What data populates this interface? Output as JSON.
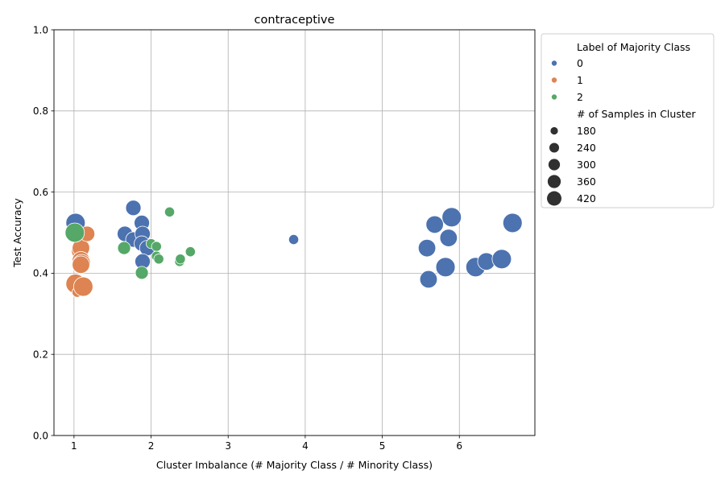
{
  "chart_data": {
    "type": "scatter",
    "title": "contraceptive",
    "xlabel": "Cluster Imbalance (# Majority Class / # Minority Class)",
    "ylabel": "Test Accuracy",
    "xlim": [
      0.74,
      6.98
    ],
    "ylim": [
      0.0,
      1.0
    ],
    "xticks": [
      1,
      2,
      3,
      4,
      5,
      6
    ],
    "yticks": [
      0.0,
      0.2,
      0.4,
      0.6,
      0.8,
      1.0
    ],
    "xtick_labels": [
      "1",
      "2",
      "3",
      "4",
      "5",
      "6"
    ],
    "ytick_labels": [
      "0.0",
      "0.2",
      "0.4",
      "0.6",
      "0.8",
      "1.0"
    ],
    "grid": true,
    "legend": {
      "placement": "outside-upper-right",
      "hue_title": "Label of Majority Class",
      "size_title": "# of Samples in Cluster",
      "hue_entries": [
        {
          "label": "0",
          "color": "#4c72b0"
        },
        {
          "label": "1",
          "color": "#dd8452"
        },
        {
          "label": "2",
          "color": "#55a868"
        }
      ],
      "size_entries": [
        {
          "label": "180",
          "value": 180
        },
        {
          "label": "240",
          "value": 240
        },
        {
          "label": "300",
          "value": 300
        },
        {
          "label": "360",
          "value": 360
        },
        {
          "label": "420",
          "value": 420
        }
      ]
    },
    "size_range": [
      120,
      450
    ],
    "series": [
      {
        "name": "0",
        "color": "#4c72b0",
        "points": [
          {
            "x": 1.02,
            "y": 0.524,
            "size": 420
          },
          {
            "x": 1.66,
            "y": 0.497,
            "size": 300
          },
          {
            "x": 1.77,
            "y": 0.561,
            "size": 300
          },
          {
            "x": 1.77,
            "y": 0.483,
            "size": 300
          },
          {
            "x": 1.88,
            "y": 0.524,
            "size": 300
          },
          {
            "x": 1.89,
            "y": 0.497,
            "size": 300
          },
          {
            "x": 1.88,
            "y": 0.473,
            "size": 300
          },
          {
            "x": 1.95,
            "y": 0.462,
            "size": 300
          },
          {
            "x": 1.89,
            "y": 0.429,
            "size": 300
          },
          {
            "x": 3.85,
            "y": 0.483,
            "size": 180
          },
          {
            "x": 5.58,
            "y": 0.462,
            "size": 360
          },
          {
            "x": 5.68,
            "y": 0.52,
            "size": 360
          },
          {
            "x": 5.6,
            "y": 0.385,
            "size": 360
          },
          {
            "x": 5.82,
            "y": 0.415,
            "size": 420
          },
          {
            "x": 5.86,
            "y": 0.487,
            "size": 360
          },
          {
            "x": 5.9,
            "y": 0.538,
            "size": 420
          },
          {
            "x": 6.21,
            "y": 0.415,
            "size": 420
          },
          {
            "x": 6.35,
            "y": 0.429,
            "size": 360
          },
          {
            "x": 6.55,
            "y": 0.435,
            "size": 420
          },
          {
            "x": 6.69,
            "y": 0.524,
            "size": 420
          }
        ]
      },
      {
        "name": "1",
        "color": "#dd8452",
        "points": [
          {
            "x": 1.02,
            "y": 0.374,
            "size": 420
          },
          {
            "x": 1.04,
            "y": 0.353,
            "size": 180
          },
          {
            "x": 1.08,
            "y": 0.455,
            "size": 360
          },
          {
            "x": 1.09,
            "y": 0.462,
            "size": 360
          },
          {
            "x": 1.09,
            "y": 0.432,
            "size": 360
          },
          {
            "x": 1.1,
            "y": 0.425,
            "size": 360
          },
          {
            "x": 1.09,
            "y": 0.421,
            "size": 360
          },
          {
            "x": 1.12,
            "y": 0.367,
            "size": 420
          },
          {
            "x": 1.17,
            "y": 0.497,
            "size": 300
          }
        ]
      },
      {
        "name": "2",
        "color": "#55a868",
        "points": [
          {
            "x": 1.01,
            "y": 0.5,
            "size": 420
          },
          {
            "x": 1.65,
            "y": 0.462,
            "size": 240
          },
          {
            "x": 1.88,
            "y": 0.401,
            "size": 240
          },
          {
            "x": 2.0,
            "y": 0.473,
            "size": 180
          },
          {
            "x": 2.07,
            "y": 0.466,
            "size": 180
          },
          {
            "x": 2.07,
            "y": 0.442,
            "size": 180
          },
          {
            "x": 2.1,
            "y": 0.435,
            "size": 180
          },
          {
            "x": 2.24,
            "y": 0.551,
            "size": 180
          },
          {
            "x": 2.37,
            "y": 0.429,
            "size": 180
          },
          {
            "x": 2.38,
            "y": 0.435,
            "size": 180
          },
          {
            "x": 2.51,
            "y": 0.453,
            "size": 180
          }
        ]
      }
    ]
  }
}
